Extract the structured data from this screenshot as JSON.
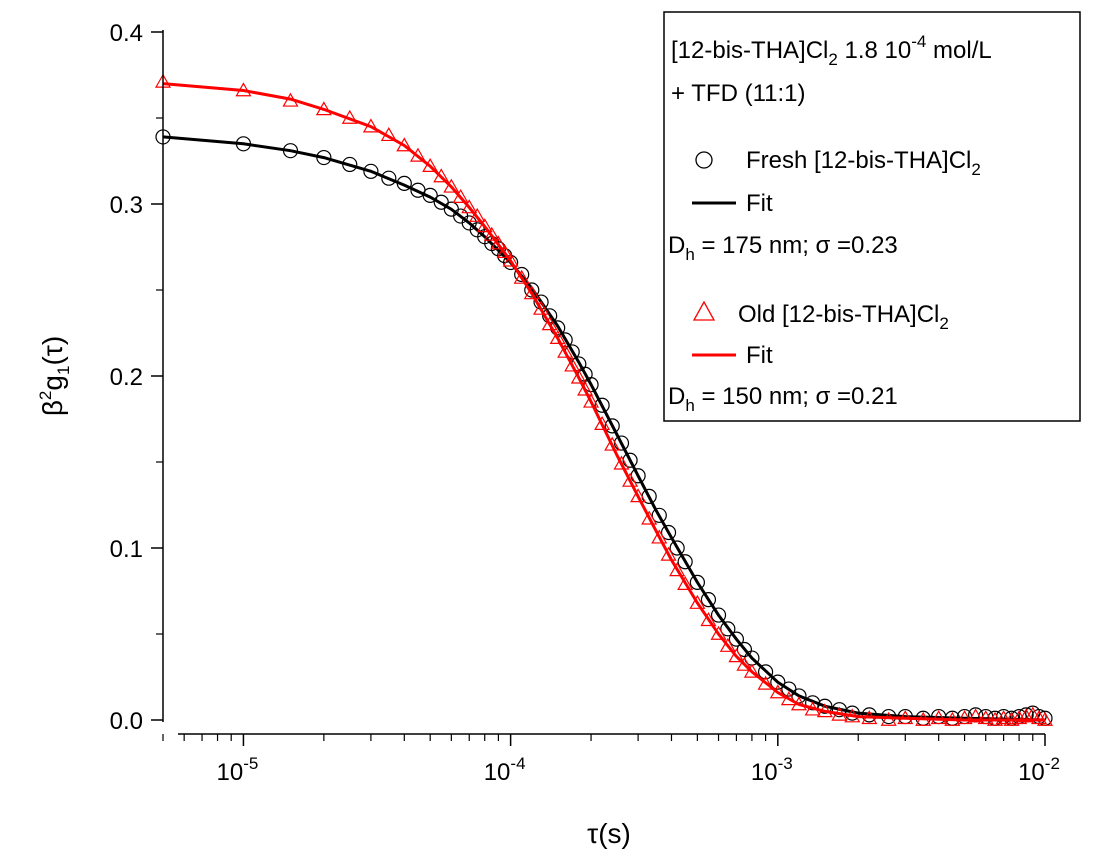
{
  "chart_data": {
    "type": "scatter",
    "x_scale": "log",
    "xlim": [
      5e-06,
      0.01
    ],
    "ylim": [
      0.0,
      0.4
    ],
    "xlabel": "τ(s)",
    "ylabel_parts": {
      "pre": "β",
      "sup": "2",
      "mid": "g",
      "sub": "1",
      "post": "(τ)"
    },
    "x_tick_labels": [
      {
        "value": 1e-05,
        "base": "10",
        "exp": "-5"
      },
      {
        "value": 0.0001,
        "base": "10",
        "exp": "-4"
      },
      {
        "value": 0.001,
        "base": "10",
        "exp": "-3"
      },
      {
        "value": 0.01,
        "base": "10",
        "exp": "-2"
      }
    ],
    "y_ticks": [
      0.0,
      0.1,
      0.2,
      0.3,
      0.4
    ],
    "y_tick_labels": [
      "0.0",
      "0.1",
      "0.2",
      "0.3",
      "0.4"
    ],
    "grid": false,
    "legend_position": "top-right",
    "legend": {
      "title_line1": {
        "pre": "[12-bis-THA]Cl",
        "sub": "2",
        "mid": " 1.8 10",
        "sup": "-4",
        "post": " mol/L"
      },
      "title_line2": "+ TFD (11:1)",
      "fresh_label": {
        "pre": "Fresh [12-bis-THA]Cl",
        "sub": "2"
      },
      "fresh_fit_label": "Fit",
      "fresh_param": {
        "pre": "D",
        "sub": "h",
        "post": " = 175 nm; σ =0.23"
      },
      "old_label": {
        "pre": "Old  [12-bis-THA]Cl",
        "sub": "2"
      },
      "old_fit_label": "Fit",
      "old_param": {
        "pre": "D",
        "sub": "h",
        "post": " = 150 nm; σ =0.21"
      }
    },
    "series": [
      {
        "name": "Fresh [12-bis-THA]Cl2",
        "marker": "circle",
        "color": "#000000",
        "points": [
          [
            5e-06,
            0.339
          ],
          [
            1e-05,
            0.335
          ],
          [
            1.5e-05,
            0.331
          ],
          [
            2e-05,
            0.327
          ],
          [
            2.5e-05,
            0.323
          ],
          [
            3e-05,
            0.319
          ],
          [
            3.5e-05,
            0.315
          ],
          [
            4e-05,
            0.312
          ],
          [
            4.5e-05,
            0.308
          ],
          [
            5e-05,
            0.305
          ],
          [
            5.5e-05,
            0.301
          ],
          [
            6e-05,
            0.297
          ],
          [
            6.5e-05,
            0.293
          ],
          [
            7e-05,
            0.289
          ],
          [
            7.5e-05,
            0.285
          ],
          [
            8e-05,
            0.281
          ],
          [
            8.5e-05,
            0.277
          ],
          [
            9e-05,
            0.274
          ],
          [
            9.5e-05,
            0.27
          ],
          [
            0.0001,
            0.266
          ],
          [
            0.00011,
            0.259
          ],
          [
            0.00012,
            0.25
          ],
          [
            0.00013,
            0.243
          ],
          [
            0.00014,
            0.235
          ],
          [
            0.00015,
            0.228
          ],
          [
            0.00016,
            0.221
          ],
          [
            0.00017,
            0.214
          ],
          [
            0.00018,
            0.207
          ],
          [
            0.00019,
            0.201
          ],
          [
            0.0002,
            0.195
          ],
          [
            0.00022,
            0.183
          ],
          [
            0.00024,
            0.171
          ],
          [
            0.00026,
            0.161
          ],
          [
            0.00028,
            0.151
          ],
          [
            0.0003,
            0.142
          ],
          [
            0.00033,
            0.13
          ],
          [
            0.00036,
            0.119
          ],
          [
            0.00039,
            0.109
          ],
          [
            0.00042,
            0.1
          ],
          [
            0.00045,
            0.092
          ],
          [
            0.0005,
            0.08
          ],
          [
            0.00055,
            0.07
          ],
          [
            0.0006,
            0.061
          ],
          [
            0.00065,
            0.053
          ],
          [
            0.0007,
            0.047
          ],
          [
            0.00075,
            0.041
          ],
          [
            0.0008,
            0.036
          ],
          [
            0.0009,
            0.028
          ],
          [
            0.001,
            0.022
          ],
          [
            0.0011,
            0.018
          ],
          [
            0.0012,
            0.014
          ],
          [
            0.00135,
            0.01
          ],
          [
            0.0015,
            0.008
          ],
          [
            0.0017,
            0.006
          ],
          [
            0.0019,
            0.004
          ],
          [
            0.0022,
            0.003
          ],
          [
            0.0026,
            0.002
          ],
          [
            0.003,
            0.002
          ],
          [
            0.0035,
            0.001
          ],
          [
            0.004,
            0.002
          ],
          [
            0.0045,
            0.001
          ],
          [
            0.005,
            0.002
          ],
          [
            0.0055,
            0.003
          ],
          [
            0.006,
            0.002
          ],
          [
            0.0065,
            0.001
          ],
          [
            0.007,
            0.002
          ],
          [
            0.0075,
            0.001
          ],
          [
            0.008,
            0.002
          ],
          [
            0.0085,
            0.003
          ],
          [
            0.009,
            0.004
          ],
          [
            0.0095,
            0.002
          ],
          [
            0.01,
            0.001
          ]
        ]
      },
      {
        "name": "Fit (Fresh)",
        "marker": "line",
        "color": "#000000",
        "points": [
          [
            5e-06,
            0.339
          ],
          [
            1e-05,
            0.335
          ],
          [
            1.5e-05,
            0.331
          ],
          [
            2e-05,
            0.327
          ],
          [
            3e-05,
            0.319
          ],
          [
            4e-05,
            0.311
          ],
          [
            5e-05,
            0.304
          ],
          [
            6e-05,
            0.297
          ],
          [
            7e-05,
            0.289
          ],
          [
            8e-05,
            0.281
          ],
          [
            0.0001,
            0.266
          ],
          [
            0.00012,
            0.251
          ],
          [
            0.00015,
            0.229
          ],
          [
            0.00018,
            0.208
          ],
          [
            0.0002,
            0.195
          ],
          [
            0.00025,
            0.166
          ],
          [
            0.0003,
            0.142
          ],
          [
            0.00035,
            0.122
          ],
          [
            0.0004,
            0.106
          ],
          [
            0.0005,
            0.08
          ],
          [
            0.0006,
            0.061
          ],
          [
            0.0007,
            0.047
          ],
          [
            0.0008,
            0.036
          ],
          [
            0.001,
            0.022
          ],
          [
            0.0012,
            0.014
          ],
          [
            0.0015,
            0.008
          ],
          [
            0.002,
            0.004
          ],
          [
            0.003,
            0.002
          ],
          [
            0.005,
            0.001
          ],
          [
            0.01,
            0.0
          ]
        ]
      },
      {
        "name": "Old [12-bis-THA]Cl2",
        "marker": "triangle",
        "color": "#ff0000",
        "points": [
          [
            5e-06,
            0.371
          ],
          [
            1e-05,
            0.366
          ],
          [
            1.5e-05,
            0.36
          ],
          [
            2e-05,
            0.355
          ],
          [
            2.5e-05,
            0.35
          ],
          [
            3e-05,
            0.345
          ],
          [
            3.5e-05,
            0.34
          ],
          [
            4e-05,
            0.334
          ],
          [
            4.5e-05,
            0.328
          ],
          [
            5e-05,
            0.322
          ],
          [
            5.5e-05,
            0.316
          ],
          [
            6e-05,
            0.31
          ],
          [
            6.5e-05,
            0.304
          ],
          [
            7e-05,
            0.298
          ],
          [
            7.5e-05,
            0.293
          ],
          [
            8e-05,
            0.287
          ],
          [
            8.5e-05,
            0.282
          ],
          [
            9e-05,
            0.277
          ],
          [
            9.5e-05,
            0.272
          ],
          [
            0.0001,
            0.267
          ],
          [
            0.00011,
            0.257
          ],
          [
            0.00012,
            0.248
          ],
          [
            0.00013,
            0.239
          ],
          [
            0.00014,
            0.23
          ],
          [
            0.00015,
            0.222
          ],
          [
            0.00016,
            0.214
          ],
          [
            0.00017,
            0.206
          ],
          [
            0.00018,
            0.199
          ],
          [
            0.00019,
            0.192
          ],
          [
            0.0002,
            0.185
          ],
          [
            0.00022,
            0.172
          ],
          [
            0.00024,
            0.16
          ],
          [
            0.00026,
            0.149
          ],
          [
            0.00028,
            0.139
          ],
          [
            0.0003,
            0.13
          ],
          [
            0.00033,
            0.117
          ],
          [
            0.00036,
            0.106
          ],
          [
            0.00039,
            0.096
          ],
          [
            0.00042,
            0.087
          ],
          [
            0.00045,
            0.079
          ],
          [
            0.0005,
            0.068
          ],
          [
            0.00055,
            0.058
          ],
          [
            0.0006,
            0.05
          ],
          [
            0.00065,
            0.043
          ],
          [
            0.0007,
            0.037
          ],
          [
            0.00075,
            0.032
          ],
          [
            0.0008,
            0.028
          ],
          [
            0.0009,
            0.021
          ],
          [
            0.001,
            0.016
          ],
          [
            0.0011,
            0.012
          ],
          [
            0.0012,
            0.009
          ],
          [
            0.00135,
            0.006
          ],
          [
            0.0015,
            0.005
          ],
          [
            0.0017,
            0.003
          ],
          [
            0.0019,
            0.002
          ],
          [
            0.0022,
            0.001
          ],
          [
            0.0026,
            0.0
          ],
          [
            0.003,
            0.001
          ],
          [
            0.0035,
            0.0
          ],
          [
            0.004,
            0.001
          ],
          [
            0.0045,
            0.0
          ],
          [
            0.005,
            0.001
          ],
          [
            0.0055,
            0.002
          ],
          [
            0.006,
            0.001
          ],
          [
            0.0065,
            0.0
          ],
          [
            0.007,
            0.001
          ],
          [
            0.0075,
            0.0
          ],
          [
            0.008,
            0.001
          ],
          [
            0.0085,
            0.002
          ],
          [
            0.009,
            0.003
          ],
          [
            0.0095,
            0.001
          ],
          [
            0.01,
            0.0
          ]
        ]
      },
      {
        "name": "Fit (Old)",
        "marker": "line",
        "color": "#ff0000",
        "points": [
          [
            5e-06,
            0.37
          ],
          [
            1e-05,
            0.366
          ],
          [
            1.5e-05,
            0.361
          ],
          [
            2e-05,
            0.355
          ],
          [
            3e-05,
            0.345
          ],
          [
            4e-05,
            0.334
          ],
          [
            5e-05,
            0.322
          ],
          [
            6e-05,
            0.31
          ],
          [
            7e-05,
            0.298
          ],
          [
            8e-05,
            0.287
          ],
          [
            0.0001,
            0.267
          ],
          [
            0.00012,
            0.248
          ],
          [
            0.00015,
            0.222
          ],
          [
            0.00018,
            0.199
          ],
          [
            0.0002,
            0.185
          ],
          [
            0.00025,
            0.154
          ],
          [
            0.0003,
            0.13
          ],
          [
            0.00035,
            0.11
          ],
          [
            0.0004,
            0.093
          ],
          [
            0.0005,
            0.068
          ],
          [
            0.0006,
            0.05
          ],
          [
            0.0007,
            0.037
          ],
          [
            0.0008,
            0.028
          ],
          [
            0.001,
            0.016
          ],
          [
            0.0012,
            0.009
          ],
          [
            0.0015,
            0.005
          ],
          [
            0.002,
            0.002
          ],
          [
            0.003,
            0.001
          ],
          [
            0.005,
            0.0
          ],
          [
            0.01,
            0.0
          ]
        ]
      }
    ]
  }
}
